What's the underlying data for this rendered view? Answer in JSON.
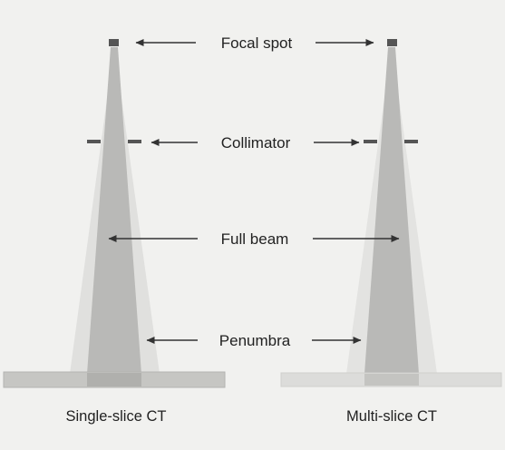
{
  "labels": {
    "focal_spot": "Focal spot",
    "collimator": "Collimator",
    "full_beam": "Full beam",
    "penumbra": "Penumbra"
  },
  "captions": {
    "single_slice": "Single-slice CT",
    "multi_slice": "Multi-slice CT"
  },
  "colors": {
    "background": "#f1f1ef",
    "beam": "#b9b9b7",
    "penumbra": "#dededc",
    "focal_spot": "#555555",
    "collimator": "#555555",
    "arrow": "#333333",
    "detector_single": "#c6c6c3",
    "detector_multi": "#dcdcda"
  }
}
